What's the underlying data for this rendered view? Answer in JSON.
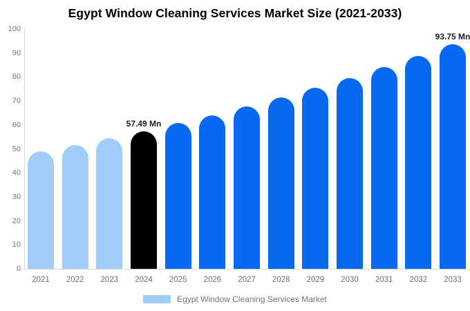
{
  "chart_data": {
    "type": "bar",
    "title": "Egypt Window Cleaning Services Market Size (2021-2033)",
    "categories": [
      "2021",
      "2022",
      "2023",
      "2024",
      "2025",
      "2026",
      "2027",
      "2028",
      "2029",
      "2030",
      "2031",
      "2032",
      "2033"
    ],
    "values": [
      48.9,
      51.6,
      54.5,
      57.49,
      60.7,
      64.1,
      67.7,
      71.4,
      75.4,
      79.6,
      84.1,
      88.8,
      93.75
    ],
    "unit": "Mn",
    "xlabel": "",
    "ylabel": "",
    "ylim": [
      0,
      100
    ],
    "ytick_step": 10,
    "grid": false,
    "legend_position": "bottom",
    "bar_roles": [
      "past",
      "past",
      "past",
      "current",
      "forecast",
      "forecast",
      "forecast",
      "forecast",
      "forecast",
      "forecast",
      "forecast",
      "forecast",
      "forecast"
    ],
    "colors": {
      "past": "#A1CDF8",
      "current": "#000000",
      "forecast": "#0768F0"
    },
    "annotations": [
      {
        "category": "2024",
        "label": "57.49 Mn"
      },
      {
        "category": "2033",
        "label": "93.75 Mn"
      }
    ]
  },
  "legend": {
    "label": "Egypt Window Cleaning Services Market",
    "swatch_color": "#A1CDF8"
  },
  "axis": {
    "tick_color": "#757575",
    "line_color": "#d9d9d9"
  }
}
